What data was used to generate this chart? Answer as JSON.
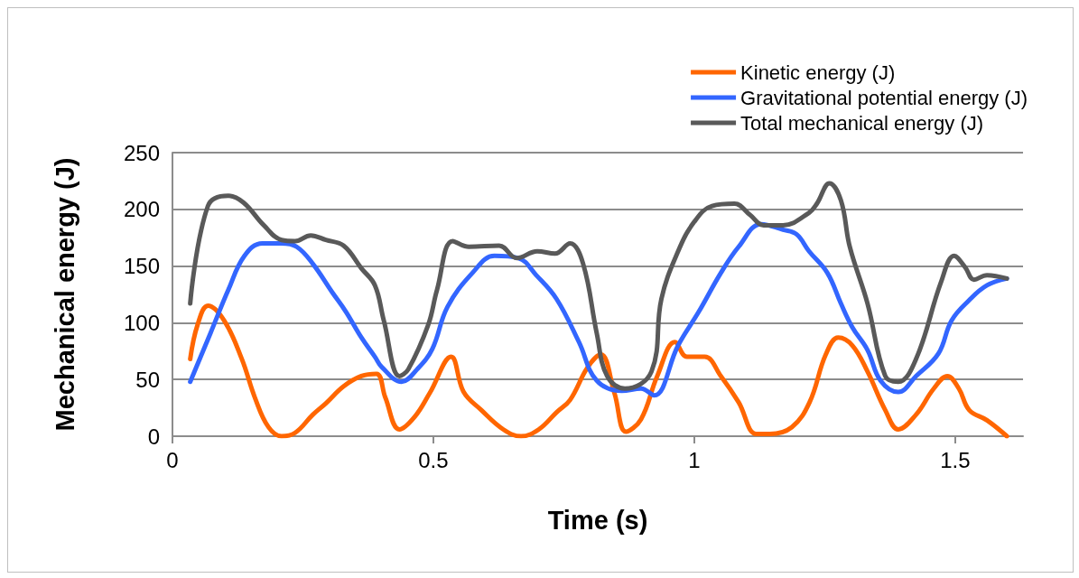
{
  "chart_data": {
    "type": "line",
    "xlabel": "Time (s)",
    "ylabel": "Mechanical energy (J)",
    "xlim": [
      0,
      1.63
    ],
    "xticks": [
      0,
      0.5,
      1,
      1.5
    ],
    "ylim": [
      0,
      250
    ],
    "yticks": [
      0,
      50,
      100,
      150,
      200,
      250
    ],
    "grid": "y",
    "legend": "top right",
    "marker": "none",
    "line_style": "solid",
    "series": [
      {
        "name": "Kinetic energy (J)",
        "color": "#ff6600",
        "x": [
          0.034,
          0.048,
          0.068,
          0.099,
          0.133,
          0.158,
          0.184,
          0.209,
          0.235,
          0.269,
          0.294,
          0.328,
          0.362,
          0.391,
          0.408,
          0.435,
          0.464,
          0.493,
          0.534,
          0.558,
          0.592,
          0.634,
          0.668,
          0.702,
          0.736,
          0.762,
          0.796,
          0.821,
          0.847,
          0.869,
          0.898,
          0.929,
          0.963,
          0.986,
          1.02,
          1.051,
          1.085,
          1.119,
          1.145,
          1.187,
          1.221,
          1.252,
          1.276,
          1.303,
          1.332,
          1.366,
          1.391,
          1.425,
          1.459,
          1.485,
          1.507,
          1.527,
          1.561,
          1.599
        ],
        "values": [
          68,
          98,
          115,
          102,
          68,
          34,
          8,
          0,
          3,
          19,
          29,
          44,
          53,
          55,
          34,
          6,
          17,
          38,
          70,
          39,
          23,
          6,
          0,
          6,
          21,
          32,
          61,
          72,
          38,
          4,
          15,
          53,
          83,
          70,
          70,
          53,
          30,
          2,
          2,
          8,
          30,
          72,
          87,
          80,
          57,
          23,
          6,
          19,
          42,
          53,
          42,
          23,
          14,
          0
        ]
      },
      {
        "name": "Gravitational potential energy (J)",
        "color": "#3366ff",
        "x": [
          0.034,
          0.073,
          0.107,
          0.138,
          0.172,
          0.209,
          0.238,
          0.269,
          0.306,
          0.332,
          0.362,
          0.388,
          0.401,
          0.439,
          0.469,
          0.498,
          0.527,
          0.575,
          0.617,
          0.663,
          0.697,
          0.736,
          0.779,
          0.813,
          0.861,
          0.898,
          0.923,
          0.969,
          1.009,
          1.051,
          1.085,
          1.128,
          1.17,
          1.196,
          1.22,
          1.255,
          1.281,
          1.303,
          1.332,
          1.357,
          1.391,
          1.425,
          1.468,
          1.493,
          1.527,
          1.561,
          1.599
        ],
        "values": [
          48,
          91,
          129,
          159,
          170,
          170,
          167,
          152,
          127,
          110,
          87,
          70,
          61,
          48,
          59,
          77,
          114,
          144,
          159,
          157,
          142,
          121,
          83,
          49,
          40,
          42,
          36,
          80,
          110,
          144,
          167,
          187,
          182,
          178,
          163,
          144,
          117,
          96,
          76,
          49,
          39,
          53,
          73,
          102,
          120,
          133,
          139
        ]
      },
      {
        "name": "Total mechanical energy (J)",
        "color": "#595959",
        "x": [
          0.034,
          0.068,
          0.107,
          0.136,
          0.175,
          0.209,
          0.235,
          0.265,
          0.294,
          0.328,
          0.362,
          0.388,
          0.405,
          0.435,
          0.452,
          0.49,
          0.507,
          0.537,
          0.568,
          0.626,
          0.66,
          0.699,
          0.733,
          0.762,
          0.787,
          0.813,
          0.833,
          0.867,
          0.918,
          0.937,
          0.969,
          1.0,
          1.034,
          1.077,
          1.107,
          1.133,
          1.17,
          1.22,
          1.235,
          1.259,
          1.281,
          1.298,
          1.332,
          1.366,
          1.391,
          1.425,
          1.473,
          1.498,
          1.519,
          1.536,
          1.561,
          1.599
        ],
        "values": [
          117,
          203,
          212,
          206,
          186,
          173,
          172,
          177,
          173,
          168,
          148,
          133,
          102,
          53,
          59,
          98,
          129,
          172,
          167,
          168,
          157,
          163,
          161,
          170,
          152,
          91,
          53,
          42,
          57,
          121,
          163,
          189,
          203,
          205,
          195,
          186,
          186,
          197,
          205,
          223,
          208,
          167,
          117,
          53,
          48,
          68,
          136,
          159,
          149,
          138,
          142,
          139
        ]
      }
    ]
  }
}
